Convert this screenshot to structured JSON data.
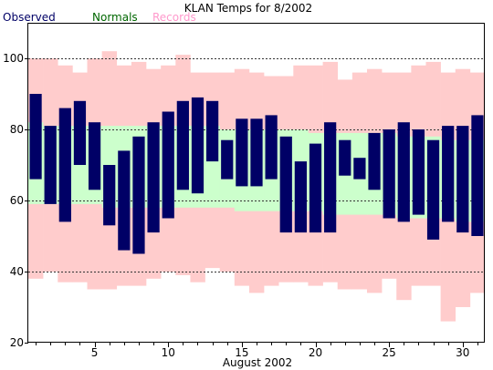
{
  "chart_data": {
    "type": "bar",
    "title": "KLAN Temps for 8/2002",
    "xlabel": "August 2002",
    "ylabel": "",
    "ylim": [
      20,
      110
    ],
    "xlim": [
      0.5,
      31.5
    ],
    "x_ticks": [
      5,
      10,
      15,
      20,
      25,
      30
    ],
    "y_ticks": [
      20,
      40,
      60,
      80,
      100
    ],
    "grid_y": [
      40,
      60,
      80,
      100
    ],
    "legend_placement": "top-left",
    "days": [
      1,
      2,
      3,
      4,
      5,
      6,
      7,
      8,
      9,
      10,
      11,
      12,
      13,
      14,
      15,
      16,
      17,
      18,
      19,
      20,
      21,
      22,
      23,
      24,
      25,
      26,
      27,
      28,
      29,
      30,
      31
    ],
    "series": [
      {
        "name": "Observed",
        "color": "#000066",
        "high": [
          90,
          81,
          86,
          88,
          82,
          70,
          74,
          78,
          82,
          85,
          88,
          89,
          88,
          77,
          83,
          83,
          84,
          78,
          71,
          76,
          82,
          77,
          72,
          79,
          80,
          82,
          80,
          77,
          81,
          81,
          84
        ],
        "low": [
          66,
          59,
          54,
          70,
          63,
          53,
          46,
          45,
          51,
          55,
          63,
          62,
          71,
          66,
          64,
          64,
          66,
          51,
          51,
          51,
          51,
          67,
          66,
          63,
          55,
          54,
          56,
          49,
          54,
          51,
          50
        ]
      },
      {
        "name": "Normals",
        "color": "#ccffcc",
        "high": [
          82,
          81,
          81,
          81,
          81,
          81,
          81,
          81,
          81,
          81,
          81,
          81,
          81,
          80,
          80,
          80,
          80,
          80,
          80,
          79,
          79,
          79,
          79,
          79,
          79,
          78,
          78,
          78,
          77,
          77,
          77
        ],
        "low": [
          59,
          59,
          59,
          59,
          59,
          58,
          58,
          58,
          58,
          58,
          58,
          58,
          58,
          58,
          57,
          57,
          57,
          57,
          57,
          57,
          56,
          56,
          56,
          56,
          56,
          55,
          55,
          55,
          55,
          54,
          54
        ]
      },
      {
        "name": "Records",
        "color": "#ffcccc",
        "high": [
          100,
          100,
          98,
          96,
          100,
          102,
          98,
          99,
          97,
          98,
          101,
          96,
          96,
          96,
          97,
          96,
          95,
          95,
          98,
          98,
          99,
          94,
          96,
          97,
          96,
          96,
          98,
          99,
          96,
          97,
          96
        ],
        "low": [
          38,
          40,
          37,
          37,
          35,
          35,
          36,
          36,
          38,
          40,
          39,
          37,
          41,
          40,
          36,
          34,
          36,
          37,
          37,
          36,
          37,
          35,
          35,
          34,
          38,
          32,
          36,
          36,
          26,
          30,
          34
        ]
      }
    ]
  }
}
